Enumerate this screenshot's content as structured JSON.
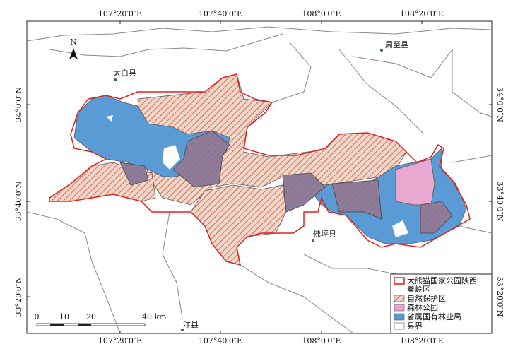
{
  "map": {
    "graticule": {
      "top": [
        "107°20′0″E",
        "107°40′0″E",
        "108°0′0″E",
        "108°20′0″E"
      ],
      "bottom": [
        "107°20′0″E",
        "107°40′0″E",
        "108°0′0″E",
        "108°20′0″E"
      ],
      "left": [
        "34°0′0″N",
        "33°40′0″N",
        "33°20′0″N"
      ],
      "right": [
        "34°0′0″N",
        "33°40′0″N",
        "33°20′0″N"
      ]
    },
    "places": [
      "太白县",
      "周至县",
      "佛坪县",
      "洋县"
    ],
    "north": "N",
    "scale_bar": [
      "0",
      "10",
      "20",
      "40 km"
    ],
    "legend": [
      {
        "lines": [
          "大熊猫国家公园陕西",
          "秦岭区"
        ]
      },
      {
        "lines": [
          "自然保护区"
        ]
      },
      {
        "lines": [
          "森林公园"
        ]
      },
      {
        "lines": [
          "省属国有林业局"
        ]
      },
      {
        "lines": [
          "县界"
        ]
      }
    ]
  }
}
